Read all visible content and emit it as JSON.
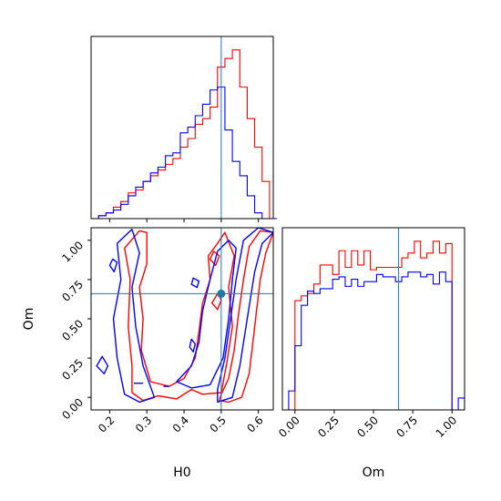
{
  "colors": {
    "series_a": "#ff0000",
    "series_b": "#0000ff",
    "truth": "#1f77b4",
    "axes": "#000000",
    "background": "#ffffff"
  },
  "chart_data": [
    {
      "panel": "H0 marginal histogram",
      "type": "step-histogram",
      "xlim": [
        0.15,
        0.64
      ],
      "truth": 0.5,
      "xticks": [
        0.2,
        0.3,
        0.4,
        0.5,
        0.6
      ],
      "show_tick_labels": false,
      "series": [
        {
          "color": "red",
          "edges": [
            0.15,
            0.17,
            0.19,
            0.21,
            0.23,
            0.25,
            0.27,
            0.29,
            0.31,
            0.33,
            0.35,
            0.37,
            0.39,
            0.41,
            0.43,
            0.45,
            0.47,
            0.49,
            0.51,
            0.53,
            0.55,
            0.57,
            0.59,
            0.61,
            0.63
          ],
          "counts": [
            0,
            1,
            2,
            4,
            6,
            9,
            10,
            13,
            15,
            17,
            19,
            21,
            25,
            28,
            33,
            35,
            39,
            53,
            56,
            59,
            46,
            35,
            25,
            13,
            0
          ]
        },
        {
          "color": "blue",
          "edges": [
            0.15,
            0.17,
            0.19,
            0.21,
            0.23,
            0.25,
            0.27,
            0.29,
            0.31,
            0.33,
            0.35,
            0.37,
            0.39,
            0.41,
            0.43,
            0.45,
            0.47,
            0.49,
            0.51,
            0.53,
            0.55,
            0.57,
            0.59,
            0.61,
            0.63
          ],
          "counts": [
            0,
            1,
            2,
            3,
            5,
            8,
            11,
            13,
            16,
            18,
            22,
            23,
            30,
            32,
            36,
            40,
            45,
            46,
            31,
            20,
            15,
            8,
            2,
            0,
            0
          ]
        }
      ]
    },
    {
      "panel": "Om vs H0 joint contours",
      "type": "contour",
      "xlabel": "H0",
      "ylabel": "Om",
      "xlim": [
        0.15,
        0.64
      ],
      "ylim": [
        -0.08,
        1.08
      ],
      "xticks": [
        "0.2",
        "0.3",
        "0.4",
        "0.5",
        "0.6"
      ],
      "yticks": [
        "0.00",
        "0.25",
        "0.50",
        "0.75",
        "1.00"
      ],
      "truth": {
        "x": 0.5,
        "y": 0.66
      },
      "series": [
        {
          "color": "red",
          "contours": [
            [
              [
                0.495,
                -0.02
              ],
              [
                0.52,
                -0.03
              ],
              [
                0.555,
                0.0
              ],
              [
                0.575,
                0.15
              ],
              [
                0.585,
                0.35
              ],
              [
                0.595,
                0.55
              ],
              [
                0.605,
                0.75
              ],
              [
                0.62,
                0.92
              ],
              [
                0.64,
                1.05
              ],
              [
                0.605,
                1.06
              ],
              [
                0.575,
                0.96
              ],
              [
                0.56,
                0.75
              ],
              [
                0.545,
                0.5
              ],
              [
                0.535,
                0.3
              ],
              [
                0.52,
                0.12
              ],
              [
                0.5,
                0.02
              ],
              [
                0.495,
                -0.02
              ]
            ],
            [
              [
                0.26,
                0.03
              ],
              [
                0.29,
                -0.02
              ],
              [
                0.33,
                0.01
              ],
              [
                0.38,
                -0.01
              ],
              [
                0.42,
                0.05
              ],
              [
                0.45,
                0.02
              ],
              [
                0.5,
                0.03
              ],
              [
                0.515,
                0.22
              ],
              [
                0.53,
                0.45
              ],
              [
                0.52,
                0.7
              ],
              [
                0.535,
                0.9
              ],
              [
                0.51,
                1.05
              ],
              [
                0.49,
                0.98
              ],
              [
                0.465,
                0.9
              ],
              [
                0.47,
                0.75
              ],
              [
                0.45,
                0.6
              ],
              [
                0.44,
                0.42
              ],
              [
                0.43,
                0.25
              ],
              [
                0.4,
                0.12
              ],
              [
                0.36,
                0.07
              ],
              [
                0.31,
                0.1
              ],
              [
                0.285,
                0.3
              ],
              [
                0.29,
                0.5
              ],
              [
                0.28,
                0.7
              ],
              [
                0.3,
                0.85
              ],
              [
                0.3,
                1.05
              ],
              [
                0.28,
                1.06
              ],
              [
                0.24,
                0.95
              ],
              [
                0.255,
                0.75
              ],
              [
                0.25,
                0.45
              ],
              [
                0.26,
                0.2
              ],
              [
                0.26,
                0.03
              ]
            ],
            [
              [
                0.475,
                0.6
              ],
              [
                0.49,
                0.56
              ],
              [
                0.5,
                0.62
              ],
              [
                0.49,
                0.66
              ],
              [
                0.475,
                0.6
              ]
            ],
            [
              [
                0.47,
                0.88
              ],
              [
                0.485,
                0.84
              ],
              [
                0.495,
                0.9
              ],
              [
                0.48,
                0.93
              ],
              [
                0.47,
                0.88
              ]
            ]
          ]
        },
        {
          "color": "blue",
          "contours": [
            [
              [
                0.49,
                -0.03
              ],
              [
                0.53,
                0.0
              ],
              [
                0.55,
                0.2
              ],
              [
                0.57,
                0.5
              ],
              [
                0.59,
                0.8
              ],
              [
                0.61,
                0.98
              ],
              [
                0.64,
                1.05
              ],
              [
                0.6,
                1.08
              ],
              [
                0.56,
                1.0
              ],
              [
                0.54,
                0.75
              ],
              [
                0.525,
                0.5
              ],
              [
                0.51,
                0.25
              ],
              [
                0.49,
                0.05
              ],
              [
                0.49,
                -0.03
              ]
            ],
            [
              [
                0.38,
                0.1
              ],
              [
                0.42,
                0.06
              ],
              [
                0.47,
                0.08
              ],
              [
                0.505,
                0.25
              ],
              [
                0.52,
                0.5
              ],
              [
                0.53,
                0.75
              ],
              [
                0.54,
                0.95
              ],
              [
                0.52,
                1.0
              ],
              [
                0.49,
                0.93
              ],
              [
                0.47,
                0.75
              ],
              [
                0.45,
                0.55
              ],
              [
                0.44,
                0.35
              ],
              [
                0.42,
                0.2
              ],
              [
                0.38,
                0.1
              ]
            ],
            [
              [
                0.24,
                0.02
              ],
              [
                0.28,
                -0.03
              ],
              [
                0.32,
                0.0
              ],
              [
                0.29,
                0.2
              ],
              [
                0.27,
                0.45
              ],
              [
                0.26,
                0.7
              ],
              [
                0.28,
                0.92
              ],
              [
                0.26,
                1.07
              ],
              [
                0.22,
                0.98
              ],
              [
                0.23,
                0.75
              ],
              [
                0.21,
                0.5
              ],
              [
                0.22,
                0.25
              ],
              [
                0.24,
                0.02
              ]
            ],
            [
              [
                0.165,
                0.2
              ],
              [
                0.185,
                0.15
              ],
              [
                0.195,
                0.2
              ],
              [
                0.18,
                0.26
              ],
              [
                0.165,
                0.2
              ]
            ],
            [
              [
                0.2,
                0.84
              ],
              [
                0.212,
                0.8
              ],
              [
                0.22,
                0.86
              ],
              [
                0.208,
                0.88
              ],
              [
                0.2,
                0.84
              ]
            ],
            [
              [
                0.415,
                0.32
              ],
              [
                0.425,
                0.29
              ],
              [
                0.43,
                0.34
              ],
              [
                0.42,
                0.37
              ],
              [
                0.415,
                0.32
              ]
            ],
            [
              [
                0.42,
                0.72
              ],
              [
                0.435,
                0.7
              ],
              [
                0.44,
                0.74
              ],
              [
                0.425,
                0.76
              ],
              [
                0.42,
                0.72
              ]
            ]
          ],
          "segments": [
            [
              [
                0.265,
                0.09
              ],
              [
                0.29,
                0.09
              ]
            ],
            [
              [
                0.345,
                0.07
              ],
              [
                0.36,
                0.07
              ]
            ]
          ]
        }
      ]
    },
    {
      "panel": "Om marginal histogram",
      "type": "step-histogram",
      "xlabel": "Om",
      "xlim": [
        -0.08,
        1.08
      ],
      "truth": 0.66,
      "xticks": [
        "0.00",
        "0.25",
        "0.50",
        "0.75",
        "1.00"
      ],
      "series": [
        {
          "color": "red",
          "edges": [
            0.0,
            0.04,
            0.08,
            0.12,
            0.16,
            0.2,
            0.24,
            0.28,
            0.32,
            0.36,
            0.4,
            0.44,
            0.48,
            0.52,
            0.56,
            0.6,
            0.64,
            0.68,
            0.72,
            0.76,
            0.8,
            0.84,
            0.88,
            0.92,
            0.96,
            1.0
          ],
          "counts": [
            46,
            48,
            49,
            53,
            61,
            61,
            57,
            67,
            60,
            67,
            61,
            67,
            59,
            60,
            60,
            60,
            60,
            64,
            66,
            71,
            64,
            66,
            71,
            66,
            70
          ]
        },
        {
          "color": "blue",
          "edges": [
            -0.04,
            0.0,
            0.04,
            0.08,
            0.12,
            0.16,
            0.2,
            0.24,
            0.28,
            0.32,
            0.36,
            0.4,
            0.44,
            0.48,
            0.52,
            0.56,
            0.6,
            0.64,
            0.68,
            0.72,
            0.76,
            0.8,
            0.84,
            0.88,
            0.92,
            0.96,
            1.0,
            1.04,
            1.08
          ],
          "counts": [
            8,
            27,
            44,
            50,
            49,
            51,
            51,
            55,
            56,
            52,
            55,
            52,
            54,
            54,
            57,
            56,
            56,
            54,
            56,
            58,
            58,
            56,
            57,
            53,
            58,
            54,
            0,
            5
          ]
        }
      ]
    }
  ]
}
